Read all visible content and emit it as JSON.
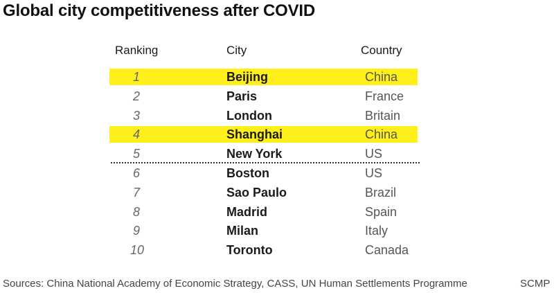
{
  "title": "Global city competitiveness after COVID",
  "source": "Sources: China National Academy of Economic Strategy, CASS, UN Human Settlements Programme",
  "brand": "SCMP",
  "colors": {
    "highlight": "#ffef1a",
    "text": "#1a1a1a",
    "muted": "#555555"
  },
  "chart_data": {
    "type": "table",
    "title": "Global city competitiveness after COVID",
    "columns": [
      "Ranking",
      "City",
      "Country"
    ],
    "rows": [
      {
        "rank": "1",
        "city": "Beijing",
        "country": "China",
        "highlighted": true
      },
      {
        "rank": "2",
        "city": "Paris",
        "country": "France",
        "highlighted": false
      },
      {
        "rank": "3",
        "city": "London",
        "country": "Britain",
        "highlighted": false
      },
      {
        "rank": "4",
        "city": "Shanghai",
        "country": "China",
        "highlighted": true
      },
      {
        "rank": "5",
        "city": "New York",
        "country": "US",
        "highlighted": false
      },
      {
        "rank": "6",
        "city": "Boston",
        "country": "US",
        "highlighted": false
      },
      {
        "rank": "7",
        "city": "Sao Paulo",
        "country": "Brazil",
        "highlighted": false
      },
      {
        "rank": "8",
        "city": "Madrid",
        "country": "Spain",
        "highlighted": false
      },
      {
        "rank": "9",
        "city": "Milan",
        "country": "Italy",
        "highlighted": false
      },
      {
        "rank": "10",
        "city": "Toronto",
        "country": "Canada",
        "highlighted": false
      }
    ],
    "divider_after_rank": "5"
  }
}
